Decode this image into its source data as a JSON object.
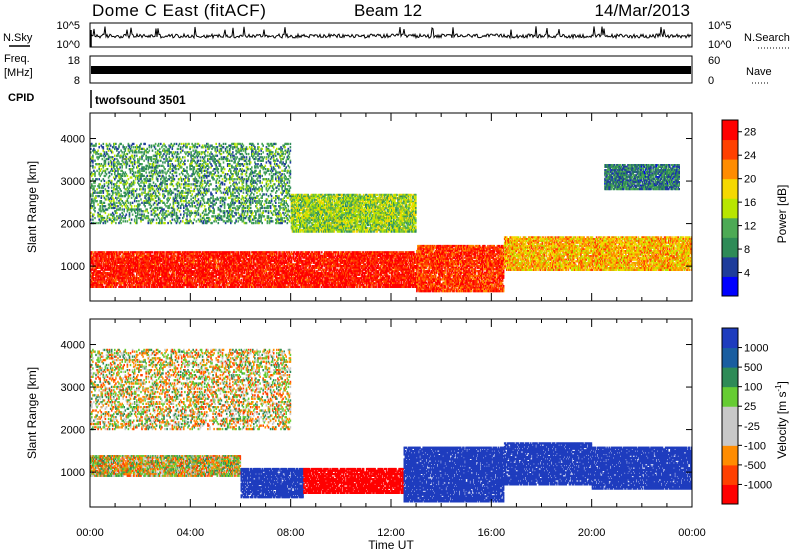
{
  "header": {
    "station": "Dome C East (fitACF)",
    "beam": "Beam 12",
    "date": "14/Mar/2013"
  },
  "strips": {
    "nsky_label": "N.Sky",
    "nsky_ticks": [
      "10^5",
      "10^0"
    ],
    "nsearch_label": "N.Search",
    "freq_label": "Freq.",
    "freq_unit": "[MHz]",
    "freq_ticks": [
      "18",
      "8"
    ],
    "nave_label": "Nave",
    "nave_ticks": [
      "60",
      "0"
    ],
    "cpid_label": "CPID",
    "cpid_value": "twofsound 3501"
  },
  "colors": {
    "power": [
      "#0000ff",
      "#1e3c9b",
      "#2e8b57",
      "#4daa55",
      "#b8e600",
      "#f5d800",
      "#ff8c00",
      "#ff4000",
      "#ff0000"
    ],
    "velocity": [
      "#ff0000",
      "#ff4000",
      "#ff8c00",
      "#c8c8c8",
      "#c8c8c8",
      "#66cc33",
      "#2e8b57",
      "#1a5ea0",
      "#1e3cbe"
    ]
  },
  "chart_data": [
    {
      "type": "heatmap",
      "name": "Power",
      "xlabel": "",
      "ylabel": "Slant Range [km]",
      "xlim": [
        "00:00",
        "24:00"
      ],
      "ylim": [
        180,
        4600
      ],
      "x_ticks": [
        "00:00",
        "04:00",
        "08:00",
        "12:00",
        "16:00",
        "20:00",
        "00:00"
      ],
      "y_ticks": [
        1000,
        2000,
        3000,
        4000
      ],
      "colorbar": {
        "label": "Power [dB]",
        "ticks": [
          "4",
          "8",
          "12",
          "16",
          "20",
          "24",
          "28"
        ],
        "range": [
          0,
          30
        ]
      },
      "regions": [
        {
          "t": [
            0,
            13
          ],
          "range": [
            500,
            1350
          ],
          "value": 28
        },
        {
          "t": [
            13,
            16.5
          ],
          "range": [
            400,
            1500
          ],
          "value": 26
        },
        {
          "t": [
            16.5,
            24
          ],
          "range": [
            900,
            1700
          ],
          "value": 20
        },
        {
          "t": [
            0,
            8
          ],
          "range": [
            2000,
            3900
          ],
          "value": 10
        },
        {
          "t": [
            8,
            13
          ],
          "range": [
            1800,
            2700
          ],
          "value": 14
        },
        {
          "t": [
            20.5,
            23.5
          ],
          "range": [
            2800,
            3400
          ],
          "value": 8
        }
      ]
    },
    {
      "type": "heatmap",
      "name": "Velocity",
      "xlabel": "Time UT",
      "ylabel": "Slant Range [km]",
      "xlim": [
        "00:00",
        "24:00"
      ],
      "ylim": [
        180,
        4600
      ],
      "x_ticks": [
        "00:00",
        "04:00",
        "08:00",
        "12:00",
        "16:00",
        "20:00",
        "00:00"
      ],
      "y_ticks": [
        1000,
        2000,
        3000,
        4000
      ],
      "colorbar": {
        "label": "Velocity [m s^-1]",
        "ticks": [
          "1000",
          "500",
          "100",
          "25",
          "-25",
          "-100",
          "-500",
          "-1000"
        ]
      },
      "regions": [
        {
          "t": [
            0,
            6
          ],
          "range": [
            900,
            1400
          ],
          "value": 0
        },
        {
          "t": [
            6,
            8.5
          ],
          "range": [
            400,
            1100
          ],
          "value": 200
        },
        {
          "t": [
            8.5,
            12.5
          ],
          "range": [
            500,
            1100
          ],
          "value": -300
        },
        {
          "t": [
            12.5,
            16.5
          ],
          "range": [
            300,
            1600
          ],
          "value": 200
        },
        {
          "t": [
            16.5,
            20
          ],
          "range": [
            700,
            1700
          ],
          "value": 600
        },
        {
          "t": [
            20,
            24
          ],
          "range": [
            600,
            1600
          ],
          "value": 150
        },
        {
          "t": [
            0,
            8
          ],
          "range": [
            2000,
            3900
          ],
          "value": 0
        }
      ]
    }
  ]
}
